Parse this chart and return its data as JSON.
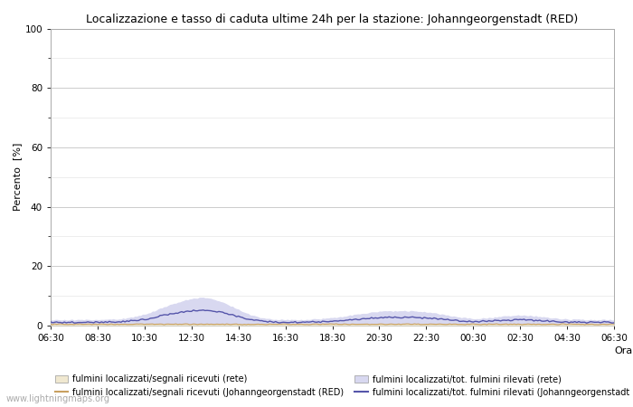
{
  "title": "Localizzazione e tasso di caduta ultime 24h per la stazione: Johanngeorgenstadt (RED)",
  "ylabel": "Percento  [%]",
  "xlabel_bottom": "Orario",
  "watermark": "www.lightningmaps.org",
  "ylim": [
    0,
    100
  ],
  "yticks": [
    0,
    20,
    40,
    60,
    80,
    100
  ],
  "yticks_minor": [
    10,
    30,
    50,
    70,
    90
  ],
  "xtick_labels": [
    "06:30",
    "08:30",
    "10:30",
    "12:30",
    "14:30",
    "16:30",
    "18:30",
    "20:30",
    "22:30",
    "00:30",
    "02:30",
    "04:30",
    "06:30"
  ],
  "bg_color": "#ffffff",
  "fill_rete_color": "#f0e8d0",
  "fill_rete_edge": "#c8a060",
  "fill_tot_color": "#d8d8f0",
  "fill_tot_edge": "#8080bb",
  "line_rete_color": "#c8a060",
  "line_tot_color": "#5555aa",
  "legend_labels": [
    "fulmini localizzati/segnali ricevuti (rete)",
    "fulmini localizzati/segnali ricevuti (Johanngeorgenstadt (RED)",
    "fulmini localizzati/tot. fulmini rilevati (rete)",
    "fulmini localizzati/tot. fulmini rilevati (Johanngeorgenstadt (RED))"
  ],
  "n_points": 289
}
